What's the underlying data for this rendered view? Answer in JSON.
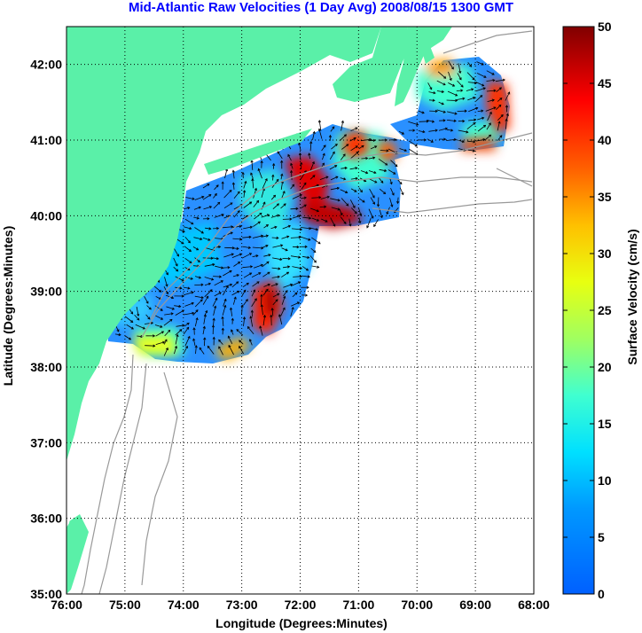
{
  "title": "Mid-Atlantic Raw Velocities (1 Day Avg) 2008/08/15 1300 GMT",
  "x_axis": {
    "label": "Longitude (Degrees:Minutes)",
    "ticks": [
      "76:00",
      "75:00",
      "74:00",
      "73:00",
      "72:00",
      "71:00",
      "70:00",
      "69:00",
      "68:00"
    ]
  },
  "y_axis": {
    "label": "Latitude (Degrees:Minutes)",
    "ticks": [
      "35:00",
      "36:00",
      "37:00",
      "38:00",
      "39:00",
      "40:00",
      "41:00",
      "42:00"
    ]
  },
  "colorbar": {
    "label": "Surface Velocity (cm/s)",
    "ticks": [
      "0",
      "5",
      "10",
      "15",
      "20",
      "25",
      "30",
      "35",
      "40",
      "45",
      "50"
    ],
    "range": [
      0,
      50
    ]
  },
  "map_extent": {
    "lon": [
      -76,
      -68
    ],
    "lat": [
      35,
      42.5
    ]
  },
  "colors": {
    "land": "#5af0a8",
    "title": "#0000ff",
    "grid": "#000000",
    "bathymetry": "#999999"
  }
}
